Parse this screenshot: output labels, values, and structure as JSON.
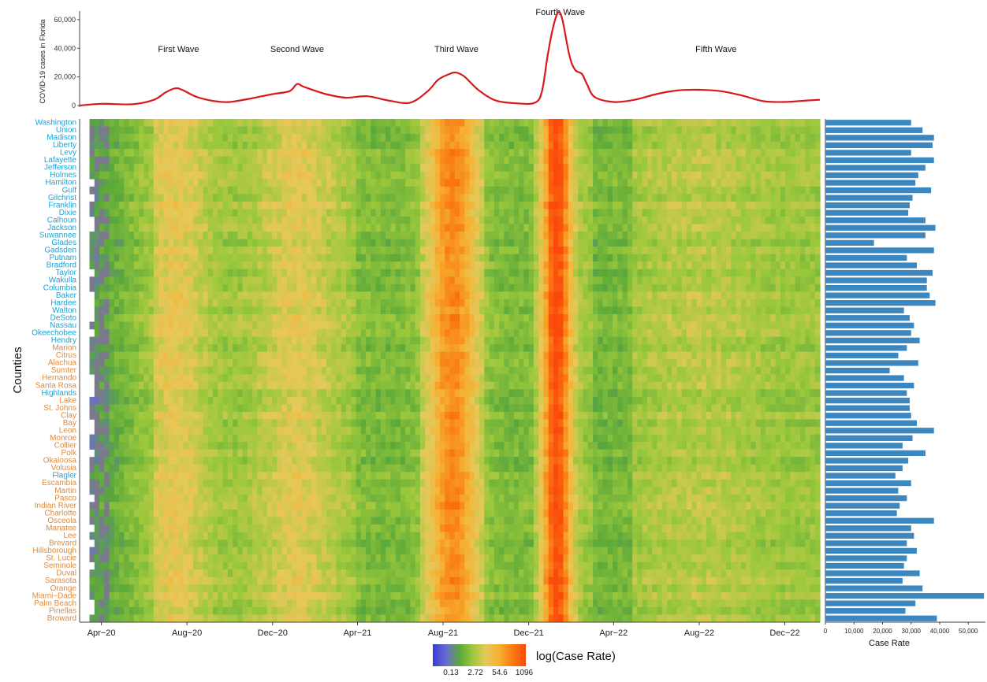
{
  "chart_data": [
    {
      "type": "line",
      "ylabel": "COVID-19 cases in Florida",
      "ylim": [
        0,
        66000
      ],
      "y_ticks": [
        0,
        20000,
        40000,
        60000
      ],
      "y_tick_labels": [
        "0",
        "20,000",
        "40,000",
        "60,000"
      ],
      "x_range": [
        "2020-03-01",
        "2023-01-20"
      ],
      "line_color": "#d7191c",
      "annotations": [
        {
          "label": "First Wave",
          "date": "2020-07-20"
        },
        {
          "label": "Second Wave",
          "date": "2021-01-05"
        },
        {
          "label": "Third Wave",
          "date": "2021-08-20"
        },
        {
          "label": "Fourth Wave",
          "date": "2022-01-15"
        },
        {
          "label": "Fifth Wave",
          "date": "2022-08-25"
        }
      ],
      "points": [
        [
          "2020-03-01",
          0
        ],
        [
          "2020-04-01",
          1200
        ],
        [
          "2020-05-15",
          900
        ],
        [
          "2020-06-15",
          4000
        ],
        [
          "2020-07-01",
          9000
        ],
        [
          "2020-07-15",
          12000
        ],
        [
          "2020-07-25",
          11000
        ],
        [
          "2020-08-15",
          6000
        ],
        [
          "2020-09-10",
          3000
        ],
        [
          "2020-10-01",
          2500
        ],
        [
          "2020-11-01",
          5000
        ],
        [
          "2020-12-01",
          8000
        ],
        [
          "2020-12-25",
          10000
        ],
        [
          "2021-01-05",
          15000
        ],
        [
          "2021-01-15",
          13000
        ],
        [
          "2021-02-15",
          8000
        ],
        [
          "2021-03-15",
          5500
        ],
        [
          "2021-04-15",
          6500
        ],
        [
          "2021-05-15",
          3500
        ],
        [
          "2021-06-15",
          2000
        ],
        [
          "2021-07-10",
          10000
        ],
        [
          "2021-07-25",
          18000
        ],
        [
          "2021-08-10",
          22000
        ],
        [
          "2021-08-20",
          23000
        ],
        [
          "2021-09-01",
          20000
        ],
        [
          "2021-09-20",
          11000
        ],
        [
          "2021-10-15",
          3500
        ],
        [
          "2021-11-15",
          1500
        ],
        [
          "2021-12-10",
          2000
        ],
        [
          "2021-12-20",
          10000
        ],
        [
          "2021-12-28",
          35000
        ],
        [
          "2022-01-05",
          55000
        ],
        [
          "2022-01-12",
          65000
        ],
        [
          "2022-01-18",
          60000
        ],
        [
          "2022-01-28",
          35000
        ],
        [
          "2022-02-05",
          25000
        ],
        [
          "2022-02-15",
          22000
        ],
        [
          "2022-02-22",
          15000
        ],
        [
          "2022-03-05",
          6000
        ],
        [
          "2022-04-01",
          2500
        ],
        [
          "2022-05-01",
          4000
        ],
        [
          "2022-06-01",
          8000
        ],
        [
          "2022-07-01",
          10500
        ],
        [
          "2022-08-01",
          11000
        ],
        [
          "2022-09-01",
          10000
        ],
        [
          "2022-10-01",
          7000
        ],
        [
          "2022-11-01",
          3000
        ],
        [
          "2022-12-01",
          2500
        ],
        [
          "2023-01-01",
          3500
        ],
        [
          "2023-01-20",
          4000
        ]
      ]
    },
    {
      "type": "heatmap",
      "ylabel": "Counties",
      "x_tick_labels": [
        "Apr−20",
        "Aug−20",
        "Dec−20",
        "Apr−21",
        "Aug−21",
        "Dec−21",
        "Apr−22",
        "Aug−22",
        "Dec−22"
      ],
      "x_tick_dates": [
        "2020-04-01",
        "2020-08-01",
        "2020-12-01",
        "2021-04-01",
        "2021-08-01",
        "2021-12-01",
        "2022-04-01",
        "2022-08-01",
        "2022-12-01"
      ],
      "x_range": [
        "2020-03-01",
        "2023-01-20"
      ],
      "colorbar": {
        "label": "log(Case Rate)",
        "tick_labels": [
          "0.13",
          "2.72",
          "54.6",
          "1096"
        ],
        "colors": [
          "#3a3ad6",
          "#6b6ad0",
          "#5aa83a",
          "#9cc83c",
          "#e6c85a",
          "#f5b030",
          "#fa7a14",
          "#fa4a0a"
        ]
      },
      "missing_color": "#7a7a8c",
      "group_colors": {
        "rural": "#1ba3d6",
        "urban": "#e08a3c"
      },
      "counties": [
        {
          "name": "Washington",
          "group": "rural"
        },
        {
          "name": "Union",
          "group": "rural"
        },
        {
          "name": "Madison",
          "group": "rural"
        },
        {
          "name": "Liberty",
          "group": "rural"
        },
        {
          "name": "Levy",
          "group": "rural"
        },
        {
          "name": "Lafayette",
          "group": "rural"
        },
        {
          "name": "Jefferson",
          "group": "rural"
        },
        {
          "name": "Holmes",
          "group": "rural"
        },
        {
          "name": "Hamilton",
          "group": "rural"
        },
        {
          "name": "Gulf",
          "group": "rural"
        },
        {
          "name": "Gilchrist",
          "group": "rural"
        },
        {
          "name": "Franklin",
          "group": "rural"
        },
        {
          "name": "Dixie",
          "group": "rural"
        },
        {
          "name": "Calhoun",
          "group": "rural"
        },
        {
          "name": "Jackson",
          "group": "rural"
        },
        {
          "name": "Suwannee",
          "group": "rural"
        },
        {
          "name": "Glades",
          "group": "rural"
        },
        {
          "name": "Gadsden",
          "group": "rural"
        },
        {
          "name": "Putnam",
          "group": "rural"
        },
        {
          "name": "Bradford",
          "group": "rural"
        },
        {
          "name": "Taylor",
          "group": "rural"
        },
        {
          "name": "Wakulla",
          "group": "rural"
        },
        {
          "name": "Columbia",
          "group": "rural"
        },
        {
          "name": "Baker",
          "group": "rural"
        },
        {
          "name": "Hardee",
          "group": "rural"
        },
        {
          "name": "Walton",
          "group": "rural"
        },
        {
          "name": "DeSoto",
          "group": "rural"
        },
        {
          "name": "Nassau",
          "group": "rural"
        },
        {
          "name": "Okeechobee",
          "group": "rural"
        },
        {
          "name": "Hendry",
          "group": "rural"
        },
        {
          "name": "Marion",
          "group": "urban"
        },
        {
          "name": "Citrus",
          "group": "urban"
        },
        {
          "name": "Alachua",
          "group": "urban"
        },
        {
          "name": "Sumter",
          "group": "urban"
        },
        {
          "name": "Hernando",
          "group": "urban"
        },
        {
          "name": "Santa Rosa",
          "group": "urban"
        },
        {
          "name": "Highlands",
          "group": "rural"
        },
        {
          "name": "Lake",
          "group": "urban"
        },
        {
          "name": "St. Johns",
          "group": "urban"
        },
        {
          "name": "Clay",
          "group": "urban"
        },
        {
          "name": "Bay",
          "group": "urban"
        },
        {
          "name": "Leon",
          "group": "urban"
        },
        {
          "name": "Monroe",
          "group": "urban"
        },
        {
          "name": "Collier",
          "group": "urban"
        },
        {
          "name": "Polk",
          "group": "urban"
        },
        {
          "name": "Okaloosa",
          "group": "urban"
        },
        {
          "name": "Volusia",
          "group": "urban"
        },
        {
          "name": "Flagler",
          "group": "rural"
        },
        {
          "name": "Escambia",
          "group": "urban"
        },
        {
          "name": "Martin",
          "group": "urban"
        },
        {
          "name": "Pasco",
          "group": "urban"
        },
        {
          "name": "Indian River",
          "group": "urban"
        },
        {
          "name": "Charlotte",
          "group": "urban"
        },
        {
          "name": "Osceola",
          "group": "urban"
        },
        {
          "name": "Manatee",
          "group": "urban"
        },
        {
          "name": "Lee",
          "group": "urban"
        },
        {
          "name": "Brevard",
          "group": "urban"
        },
        {
          "name": "Hillsborough",
          "group": "urban"
        },
        {
          "name": "St. Lucie",
          "group": "urban"
        },
        {
          "name": "Seminole",
          "group": "urban"
        },
        {
          "name": "Duval",
          "group": "urban"
        },
        {
          "name": "Sarasota",
          "group": "urban"
        },
        {
          "name": "Orange",
          "group": "urban"
        },
        {
          "name": "Miami−Dade",
          "group": "urban"
        },
        {
          "name": "Palm Beach",
          "group": "urban"
        },
        {
          "name": "Pinellas",
          "group": "urban"
        },
        {
          "name": "Broward",
          "group": "urban"
        }
      ],
      "waves": [
        {
          "peak": "2020-07-15",
          "width_days": 45,
          "level": 0.58
        },
        {
          "peak": "2021-01-05",
          "width_days": 55,
          "level": 0.56
        },
        {
          "peak": "2021-08-15",
          "width_days": 35,
          "level": 0.82
        },
        {
          "peak": "2022-01-10",
          "width_days": 20,
          "level": 1.0
        },
        {
          "peak": "2022-08-01",
          "width_days": 90,
          "level": 0.48
        }
      ]
    },
    {
      "type": "bar",
      "orientation": "horizontal",
      "xlabel": "Case Rate",
      "x_ticks": [
        0,
        10000,
        20000,
        30000,
        40000,
        50000
      ],
      "x_tick_labels": [
        "0",
        "10,000",
        "20,000",
        "30,000",
        "40,000",
        "50,000"
      ],
      "xlim": [
        0,
        56000
      ],
      "bar_color": "#3d87c0",
      "values": [
        30000,
        34000,
        38000,
        37500,
        30000,
        38000,
        35000,
        32500,
        31500,
        37000,
        30500,
        29500,
        29000,
        35000,
        38500,
        35000,
        17000,
        38000,
        28500,
        32000,
        37500,
        35500,
        35500,
        36500,
        38500,
        27500,
        29500,
        31000,
        30000,
        33000,
        28500,
        25500,
        32500,
        22500,
        27500,
        31000,
        28500,
        29500,
        29500,
        30000,
        32000,
        38000,
        30500,
        27000,
        35000,
        29000,
        27000,
        24500,
        30000,
        25500,
        28500,
        26000,
        25000,
        38000,
        30000,
        31000,
        28500,
        32000,
        28500,
        27500,
        33000,
        27000,
        34000,
        55500,
        31500,
        28000,
        39000
      ]
    }
  ]
}
